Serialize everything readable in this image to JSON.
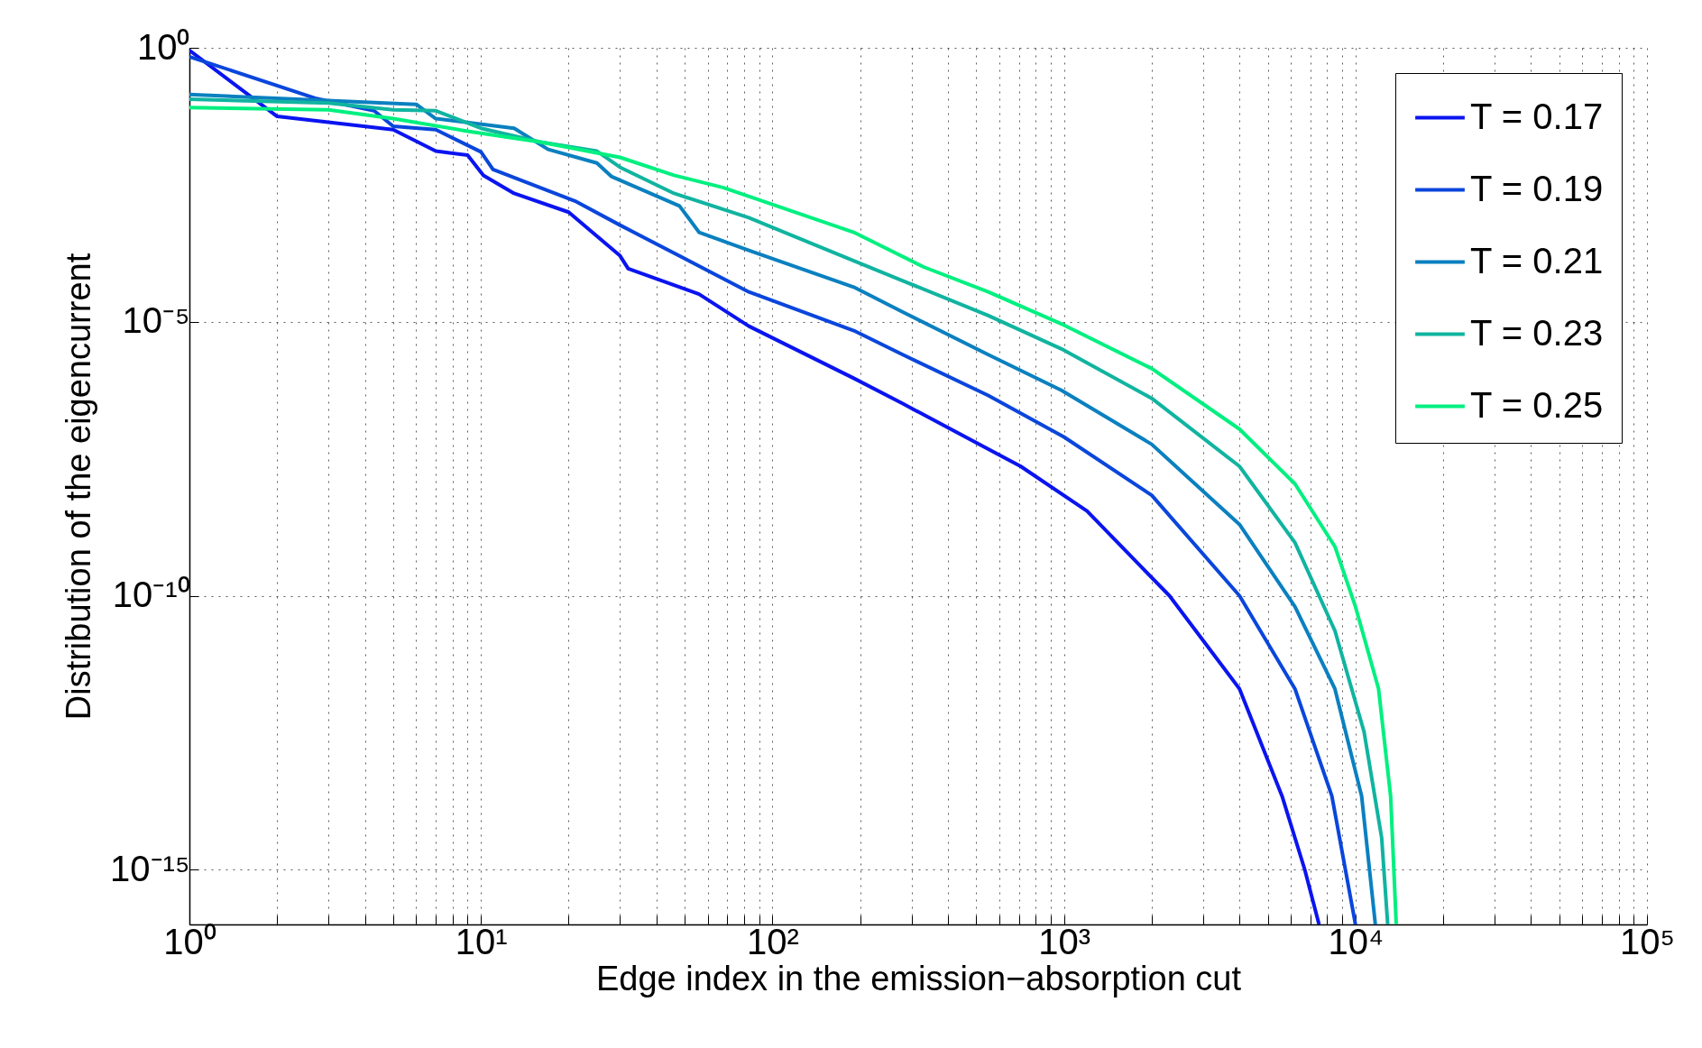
{
  "chart_data": {
    "type": "line",
    "xlabel": "Edge index in the emission−absorption cut",
    "ylabel": "Distribution of the eigencurrent",
    "log": "xy",
    "grid": true,
    "legend": "top right",
    "xlim": [
      1,
      100000
    ],
    "ylim": [
      1e-16,
      1
    ],
    "xticks": [
      {
        "value": 1,
        "label": "10⁰"
      },
      {
        "value": 2,
        "label": null
      },
      {
        "value": 3,
        "label": null
      },
      {
        "value": 4,
        "label": null
      },
      {
        "value": 5,
        "label": null
      },
      {
        "value": 6,
        "label": null
      },
      {
        "value": 7,
        "label": null
      },
      {
        "value": 8,
        "label": null
      },
      {
        "value": 9,
        "label": null
      },
      {
        "value": 10,
        "label": "10¹"
      },
      {
        "value": 20,
        "label": null
      },
      {
        "value": 30,
        "label": null
      },
      {
        "value": 40,
        "label": null
      },
      {
        "value": 50,
        "label": null
      },
      {
        "value": 60,
        "label": null
      },
      {
        "value": 70,
        "label": null
      },
      {
        "value": 80,
        "label": null
      },
      {
        "value": 90,
        "label": null
      },
      {
        "value": 100,
        "label": "10²"
      },
      {
        "value": 200,
        "label": null
      },
      {
        "value": 300,
        "label": null
      },
      {
        "value": 400,
        "label": null
      },
      {
        "value": 500,
        "label": null
      },
      {
        "value": 600,
        "label": null
      },
      {
        "value": 700,
        "label": null
      },
      {
        "value": 800,
        "label": null
      },
      {
        "value": 900,
        "label": null
      },
      {
        "value": 1000,
        "label": "10³"
      },
      {
        "value": 2000,
        "label": null
      },
      {
        "value": 3000,
        "label": null
      },
      {
        "value": 4000,
        "label": null
      },
      {
        "value": 5000,
        "label": null
      },
      {
        "value": 6000,
        "label": null
      },
      {
        "value": 7000,
        "label": null
      },
      {
        "value": 8000,
        "label": null
      },
      {
        "value": 9000,
        "label": null
      },
      {
        "value": 10000,
        "label": "10⁴"
      },
      {
        "value": 20000,
        "label": null
      },
      {
        "value": 30000,
        "label": null
      },
      {
        "value": 40000,
        "label": null
      },
      {
        "value": 50000,
        "label": null
      },
      {
        "value": 60000,
        "label": null
      },
      {
        "value": 70000,
        "label": null
      },
      {
        "value": 80000,
        "label": null
      },
      {
        "value": 90000,
        "label": null
      },
      {
        "value": 100000,
        "label": "10⁵"
      }
    ],
    "yticks": [
      {
        "value": 1e-15,
        "label": "10⁻¹⁵"
      },
      {
        "value": 1e-10,
        "label": "10⁻¹⁰"
      },
      {
        "value": 1e-05,
        "label": "10⁻⁵"
      },
      {
        "value": 1,
        "label": "10⁰"
      }
    ],
    "series": [
      {
        "name": "T = 0.17",
        "color": "#0a14f0",
        "x": [
          1,
          2,
          5,
          7,
          9,
          10.2,
          13,
          20,
          30,
          32,
          56,
          83,
          190,
          280,
          710,
          1200,
          2300,
          4000,
          5600,
          6700,
          7500
        ],
        "values": [
          0.9,
          0.056,
          0.032,
          0.013,
          0.011,
          0.0047,
          0.0022,
          0.001,
          0.00016,
          9.3e-05,
          3.2e-05,
          8.3e-06,
          9.3e-07,
          3.2e-07,
          2.3e-08,
          3.5e-09,
          1e-10,
          2e-12,
          2.2e-14,
          1e-15,
          1e-16
        ]
      },
      {
        "name": "T = 0.19",
        "color": "#0a46dc",
        "x": [
          1,
          2.7,
          4.3,
          5,
          7,
          10,
          11,
          21,
          30,
          83,
          190,
          280,
          550,
          1000,
          2000,
          4000,
          6200,
          8300,
          10000
        ],
        "values": [
          0.69,
          0.12,
          0.071,
          0.037,
          0.032,
          0.0126,
          0.006,
          0.0016,
          0.00058,
          3.5e-05,
          6.9e-06,
          2.5e-06,
          4.5e-07,
          7.9e-08,
          6.8e-09,
          1e-10,
          2e-12,
          2.2e-14,
          1e-16
        ]
      },
      {
        "name": "T = 0.21",
        "color": "#0a80c0",
        "x": [
          1,
          6,
          7,
          13,
          17,
          25,
          28,
          48,
          56,
          83,
          190,
          280,
          550,
          980,
          2000,
          4000,
          6200,
          8500,
          10500,
          11700
        ],
        "values": [
          0.14,
          0.093,
          0.051,
          0.034,
          0.014,
          0.0079,
          0.0045,
          0.0013,
          0.00043,
          0.0002,
          4.3e-05,
          1.5e-05,
          2.5e-06,
          5.6e-07,
          5.8e-08,
          2e-09,
          6.3e-11,
          2e-12,
          2.2e-14,
          1e-16
        ]
      },
      {
        "name": "T = 0.23",
        "color": "#10b4a0",
        "x": [
          1,
          3,
          5,
          7,
          10,
          16,
          25,
          30,
          46,
          83,
          190,
          280,
          550,
          980,
          2000,
          4000,
          6200,
          8500,
          10700,
          12300,
          12900
        ],
        "values": [
          0.115,
          0.098,
          0.074,
          0.071,
          0.034,
          0.019,
          0.013,
          0.0066,
          0.0022,
          0.00079,
          0.00013,
          5.6e-05,
          1.3e-05,
          3.2e-06,
          4e-07,
          2.3e-08,
          9.3e-10,
          2.3e-11,
          3.3e-13,
          3.8e-15,
          1e-16
        ]
      },
      {
        "name": "T = 0.25",
        "color": "#00f080",
        "x": [
          1,
          3,
          5,
          9,
          16,
          30,
          46,
          68,
          190,
          330,
          550,
          1000,
          2000,
          4000,
          6200,
          8500,
          10000,
          12000,
          13200,
          13800
        ],
        "values": [
          0.081,
          0.074,
          0.051,
          0.03,
          0.019,
          0.01,
          0.0047,
          0.0028,
          0.00043,
          0.0001,
          3.5e-05,
          8.7e-06,
          1.4e-06,
          1.1e-07,
          1.1e-08,
          7.9e-10,
          6.3e-11,
          2e-12,
          2.2e-14,
          1e-16
        ]
      }
    ]
  }
}
